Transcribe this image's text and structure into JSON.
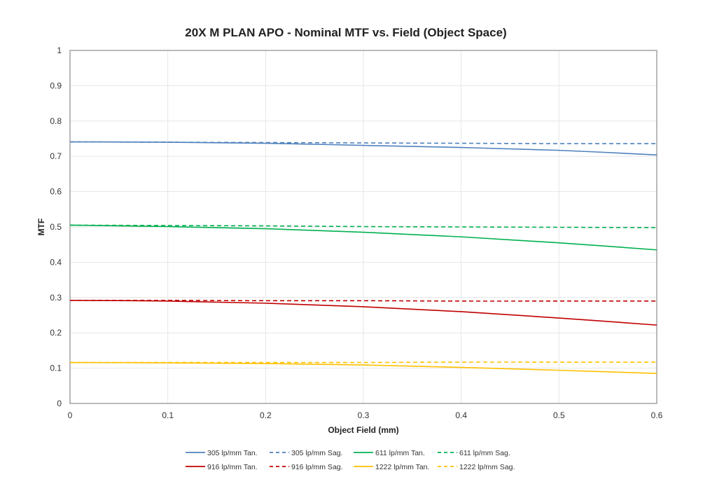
{
  "chart_data": {
    "type": "line",
    "title": "20X M PLAN APO - Nominal MTF vs. Field (Object Space)",
    "xlabel": "Object Field (mm)",
    "ylabel": "MTF",
    "xlim": [
      0,
      0.6
    ],
    "ylim": [
      0,
      1
    ],
    "xticks": [
      "0",
      "0.1",
      "0.2",
      "0.3",
      "0.4",
      "0.5",
      "0.6"
    ],
    "yticks": [
      "0",
      "0.1",
      "0.2",
      "0.3",
      "0.4",
      "0.5",
      "0.6",
      "0.7",
      "0.8",
      "0.9",
      "1"
    ],
    "grid": true,
    "legend_position": "bottom",
    "x": [
      0,
      0.1,
      0.2,
      0.3,
      0.4,
      0.5,
      0.6
    ],
    "series": [
      {
        "name": "305 lp/mm Tan.",
        "color": "#4f81bd",
        "dashed": false,
        "values": [
          0.741,
          0.74,
          0.737,
          0.731,
          0.725,
          0.717,
          0.704
        ]
      },
      {
        "name": "305 lp/mm Sag.",
        "color": "#4f81bd",
        "dashed": true,
        "values": [
          0.741,
          0.74,
          0.739,
          0.738,
          0.737,
          0.736,
          0.736
        ]
      },
      {
        "name": "611 lp/mm Tan.",
        "color": "#00b050",
        "dashed": false,
        "values": [
          0.505,
          0.501,
          0.495,
          0.485,
          0.472,
          0.455,
          0.435
        ]
      },
      {
        "name": "611 lp/mm Sag.",
        "color": "#00b050",
        "dashed": true,
        "values": [
          0.505,
          0.504,
          0.503,
          0.501,
          0.5,
          0.499,
          0.498
        ]
      },
      {
        "name": "916 lp/mm Tan.",
        "color": "#c00000",
        "dashed": false,
        "values": [
          0.292,
          0.29,
          0.284,
          0.274,
          0.26,
          0.242,
          0.222
        ]
      },
      {
        "name": "916 lp/mm Sag.",
        "color": "#c00000",
        "dashed": true,
        "values": [
          0.292,
          0.292,
          0.291,
          0.291,
          0.29,
          0.29,
          0.29
        ]
      },
      {
        "name": "1222 lp/mm Tan.",
        "color": "#ffc000",
        "dashed": false,
        "values": [
          0.116,
          0.115,
          0.113,
          0.109,
          0.102,
          0.094,
          0.085
        ]
      },
      {
        "name": "1222 lp/mm Sag.",
        "color": "#ffc000",
        "dashed": true,
        "values": [
          0.116,
          0.116,
          0.116,
          0.116,
          0.117,
          0.117,
          0.117
        ]
      }
    ]
  }
}
